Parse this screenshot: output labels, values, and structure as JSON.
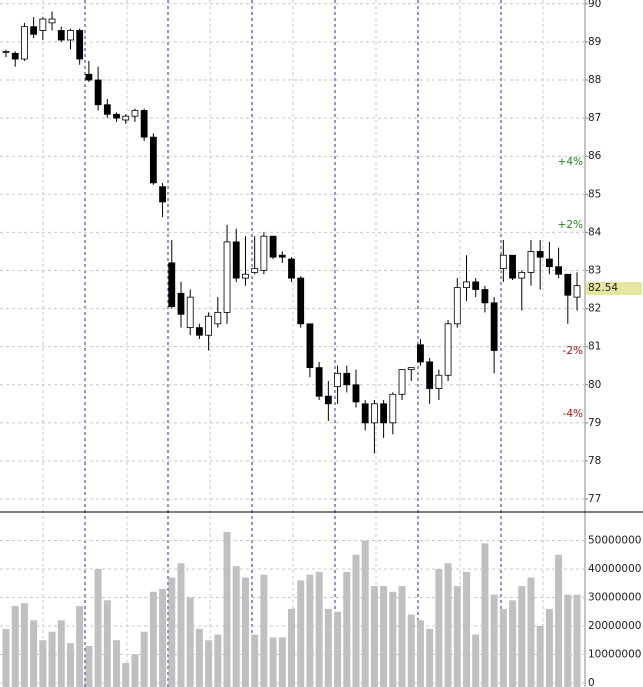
{
  "chart_data": [
    {
      "type": "candlestick",
      "open": [
        88.75,
        88.7,
        88.55,
        89.4,
        89.3,
        89.5,
        89.3,
        89.05,
        89.3,
        88.15,
        88.0,
        87.35,
        87.1,
        86.95,
        87.05,
        87.2,
        86.5,
        85.2,
        83.2,
        82.4,
        81.5,
        81.5,
        81.3,
        81.6,
        81.9,
        83.75,
        82.8,
        82.95,
        83.0,
        83.9,
        83.4,
        83.3,
        82.8,
        81.6,
        80.45,
        79.7,
        79.95,
        80.3,
        80.0,
        79.5,
        79.0,
        79.5,
        79.0,
        79.75,
        80.4,
        81.05,
        80.6,
        79.9,
        80.25,
        81.6,
        82.55,
        82.7,
        82.5,
        82.15,
        83.05,
        83.4,
        82.8,
        82.95,
        83.5,
        83.3,
        83.1,
        82.9,
        82.3
      ],
      "high": [
        88.8,
        88.75,
        89.5,
        89.65,
        89.65,
        89.8,
        89.4,
        89.35,
        89.35,
        88.5,
        88.35,
        87.5,
        87.15,
        87.1,
        87.25,
        87.25,
        86.6,
        85.3,
        83.8,
        82.7,
        82.5,
        81.6,
        81.9,
        82.3,
        84.2,
        84.1,
        83.9,
        83.9,
        84.0,
        83.9,
        83.5,
        83.35,
        82.85,
        81.6,
        80.6,
        80.1,
        80.5,
        80.5,
        80.4,
        79.6,
        79.6,
        79.6,
        79.8,
        80.4,
        80.45,
        81.2,
        80.7,
        80.4,
        81.7,
        82.8,
        83.4,
        82.8,
        82.6,
        82.3,
        83.8,
        83.4,
        83.0,
        83.8,
        83.8,
        83.75,
        83.6,
        82.9,
        82.95
      ],
      "low": [
        88.6,
        88.35,
        88.5,
        89.1,
        89.05,
        89.3,
        89.0,
        88.8,
        88.4,
        87.95,
        87.2,
        87.0,
        86.9,
        86.85,
        86.9,
        86.4,
        85.25,
        84.4,
        82.0,
        81.5,
        81.3,
        81.2,
        80.9,
        81.5,
        81.6,
        82.7,
        82.6,
        82.9,
        82.9,
        83.3,
        83.2,
        82.7,
        81.5,
        80.2,
        79.6,
        79.05,
        79.5,
        79.8,
        79.4,
        78.8,
        78.2,
        78.6,
        78.7,
        79.6,
        80.1,
        80.5,
        79.5,
        79.6,
        80.1,
        81.5,
        82.2,
        82.3,
        81.9,
        80.3,
        82.7,
        82.75,
        81.95,
        82.6,
        82.5,
        82.9,
        82.8,
        81.6,
        81.95
      ],
      "close": [
        88.75,
        88.55,
        89.4,
        89.2,
        89.6,
        89.6,
        89.05,
        89.3,
        88.55,
        88.0,
        87.35,
        87.1,
        87.0,
        87.05,
        87.2,
        86.5,
        85.3,
        84.8,
        82.05,
        81.85,
        82.3,
        81.3,
        81.8,
        81.9,
        83.75,
        82.8,
        82.9,
        83.05,
        83.9,
        83.35,
        83.35,
        82.8,
        81.6,
        80.45,
        79.7,
        79.5,
        80.3,
        80.0,
        79.55,
        79.0,
        79.5,
        79.0,
        79.75,
        80.4,
        80.45,
        80.6,
        79.9,
        80.25,
        81.6,
        82.55,
        82.7,
        82.5,
        82.15,
        80.9,
        83.4,
        82.8,
        82.95,
        83.5,
        83.35,
        83.1,
        82.9,
        82.35,
        82.6
      ],
      "ylim": [
        76.66,
        90.1
      ],
      "yticks": [
        77,
        78,
        79,
        80,
        81,
        82,
        83,
        84,
        85,
        86,
        87,
        88,
        89,
        90
      ],
      "last_price": 82.54,
      "percent_levels": [
        {
          "value": 4,
          "label": "+4%"
        },
        {
          "value": 2,
          "label": "+2%"
        },
        {
          "value": -2,
          "label": "-2%"
        },
        {
          "value": -4,
          "label": "-4%"
        }
      ],
      "grid": true
    },
    {
      "type": "volume",
      "values": [
        19000000,
        27000000,
        28000000,
        22000000,
        15000000,
        18000000,
        22000000,
        14000000,
        27000000,
        13000000,
        40000000,
        29000000,
        15000000,
        7000000,
        10000000,
        18000000,
        32000000,
        33000000,
        37000000,
        42000000,
        30000000,
        19000000,
        15000000,
        17000000,
        53000000,
        41000000,
        37000000,
        17000000,
        38000000,
        16000000,
        16000000,
        26000000,
        36000000,
        38000000,
        39000000,
        26000000,
        25000000,
        39000000,
        45000000,
        50000000,
        34000000,
        34000000,
        32000000,
        34000000,
        24000000,
        22000000,
        19000000,
        40000000,
        42000000,
        34000000,
        39000000,
        17000000,
        49000000,
        31000000,
        26000000,
        29000000,
        34000000,
        37000000,
        20000000,
        26000000,
        45000000,
        31000000,
        31000000
      ],
      "color": "#c0c0c0",
      "ylim": [
        0,
        60000000
      ],
      "yticks": [
        0,
        10000000,
        20000000,
        30000000,
        40000000,
        50000000
      ],
      "grid": true
    }
  ]
}
